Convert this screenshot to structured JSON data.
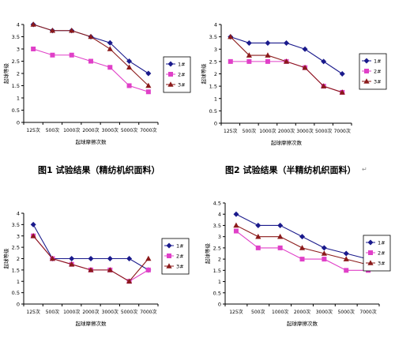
{
  "captions": {
    "fig1": "图1 试验结果（精纺机织面料）",
    "fig2": "图2 试验结果（半精纺机织面料）"
  },
  "return_mark": "↵",
  "chart_data": [
    {
      "type": "line",
      "ylabel": "起球等级",
      "xlabel": "起球摩擦次数",
      "ylim": [
        0,
        4
      ],
      "yticks": [
        "0",
        "0.5",
        "1",
        "1.5",
        "2",
        "2.5",
        "3",
        "3.5",
        "4"
      ],
      "categories": [
        "125次",
        "500次",
        "1000次",
        "2000次",
        "3000次",
        "5000次",
        "7000次"
      ],
      "grid": false,
      "legend_position": "right",
      "series": [
        {
          "name": "1#",
          "color": "#1a1a8c",
          "marker": "diamond",
          "values": [
            4,
            3.75,
            3.75,
            3.5,
            3.25,
            2.5,
            2
          ]
        },
        {
          "name": "2#",
          "color": "#e040c8",
          "marker": "square",
          "values": [
            3,
            2.75,
            2.75,
            2.5,
            2.25,
            1.5,
            1.25
          ]
        },
        {
          "name": "3#",
          "color": "#8b1a1a",
          "marker": "triangle",
          "values": [
            4,
            3.75,
            3.75,
            3.5,
            3,
            2.25,
            1.5
          ]
        }
      ]
    },
    {
      "type": "line",
      "ylabel": "起球等级",
      "xlabel": "起球摩擦次数",
      "ylim": [
        0,
        4
      ],
      "yticks": [
        "0",
        "0.5",
        "1",
        "1.5",
        "2",
        "2.5",
        "3",
        "3.5",
        "4"
      ],
      "categories": [
        "125次",
        "500次",
        "1000次",
        "2000次",
        "3000次",
        "5000次",
        "7000次"
      ],
      "grid": false,
      "legend_position": "right",
      "series": [
        {
          "name": "1#",
          "color": "#1a1a8c",
          "marker": "diamond",
          "values": [
            3.5,
            3.25,
            3.25,
            3.25,
            3,
            2.5,
            2
          ]
        },
        {
          "name": "2#",
          "color": "#e040c8",
          "marker": "square",
          "values": [
            2.5,
            2.5,
            2.5,
            2.5,
            2.25,
            1.5,
            1.25
          ]
        },
        {
          "name": "3#",
          "color": "#8b1a1a",
          "marker": "triangle",
          "values": [
            3.5,
            2.75,
            2.75,
            2.5,
            2.25,
            1.5,
            1.25
          ]
        }
      ]
    },
    {
      "type": "line",
      "ylabel": "起球等级",
      "xlabel": "起球摩擦次数",
      "ylim": [
        0,
        4
      ],
      "yticks": [
        "0",
        "0.5",
        "1",
        "1.5",
        "2",
        "2.5",
        "3",
        "3.5",
        "4"
      ],
      "categories": [
        "125次",
        "500次",
        "1000次",
        "2000次",
        "3000次",
        "5000次",
        "7000次"
      ],
      "grid": false,
      "legend_position": "right",
      "series": [
        {
          "name": "1#",
          "color": "#1a1a8c",
          "marker": "diamond",
          "values": [
            3.5,
            2,
            2,
            2,
            2,
            2,
            1.5
          ]
        },
        {
          "name": "2#",
          "color": "#e040c8",
          "marker": "square",
          "values": [
            3,
            2,
            1.75,
            1.5,
            1.5,
            1,
            1.5
          ]
        },
        {
          "name": "3#",
          "color": "#8b1a1a",
          "marker": "triangle",
          "values": [
            3,
            2,
            1.75,
            1.5,
            1.5,
            1,
            2
          ]
        }
      ]
    },
    {
      "type": "line",
      "ylabel": "起球等级",
      "xlabel": "起球摩擦次数",
      "ylim": [
        0,
        4.5
      ],
      "yticks": [
        "0",
        "0.5",
        "1",
        "1.5",
        "2",
        "2.5",
        "3",
        "3.5",
        "4",
        "4.5"
      ],
      "categories": [
        "125次",
        "500次",
        "1000次",
        "2000次",
        "3000次",
        "5000次",
        "7000次"
      ],
      "grid": false,
      "legend_position": "right",
      "series": [
        {
          "name": "1#",
          "color": "#1a1a8c",
          "marker": "diamond",
          "values": [
            4,
            3.5,
            3.5,
            3,
            2.5,
            2.25,
            2
          ]
        },
        {
          "name": "2#",
          "color": "#e040c8",
          "marker": "square",
          "values": [
            3.25,
            2.5,
            2.5,
            2,
            2,
            1.5,
            1.5
          ]
        },
        {
          "name": "3#",
          "color": "#8b1a1a",
          "marker": "triangle",
          "values": [
            3.5,
            3,
            3,
            2.5,
            2.25,
            2,
            1.75
          ]
        }
      ]
    }
  ]
}
